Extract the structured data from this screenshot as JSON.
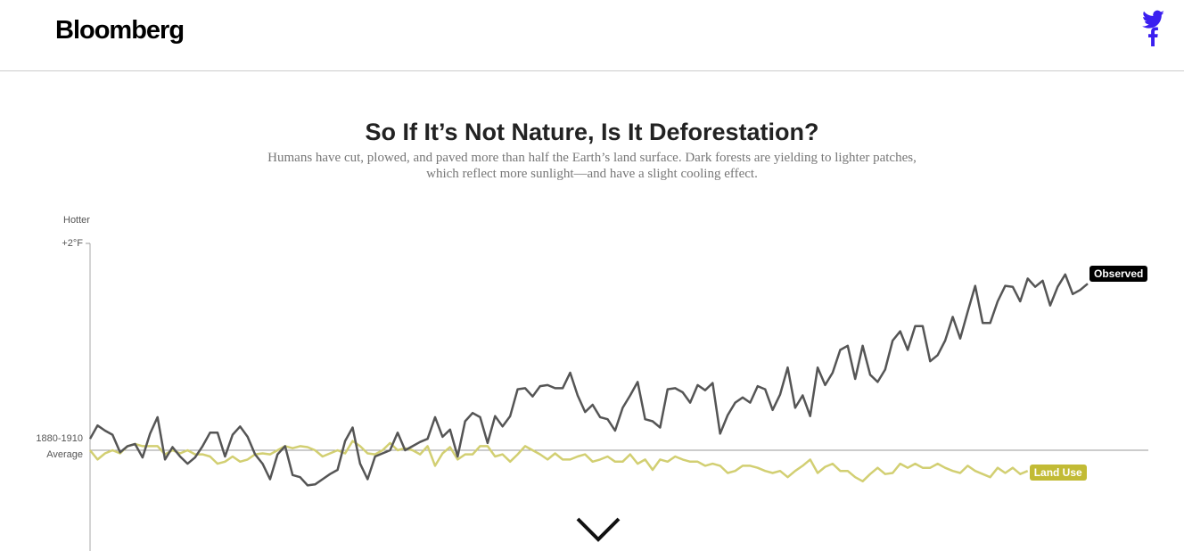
{
  "header": {
    "brand": "Bloomberg"
  },
  "chart_data": {
    "type": "line",
    "title": "So If It’s Not Nature, Is It Deforestation?",
    "subtitle": "Humans have cut, plowed, and paved more than half the Earth’s land surface. Dark forests are yielding to lighter patches, which reflect more sunlight—and have a slight cooling effect.",
    "y_label": "Hotter",
    "ylim": [
      -1,
      2
    ],
    "yticks": [
      {
        "value": 0,
        "label": "1880-1910 Average"
      },
      {
        "value": 2,
        "label": "+2°F"
      }
    ],
    "series": [
      {
        "name": "Observed",
        "color": "#555555",
        "label_color": "#000000",
        "values": [
          0.11,
          0.24,
          0.19,
          0.15,
          -0.02,
          0.04,
          0.06,
          -0.07,
          0.16,
          0.32,
          -0.09,
          0.03,
          -0.06,
          -0.13,
          -0.07,
          0.04,
          0.17,
          0.17,
          -0.06,
          0.15,
          0.23,
          0.13,
          -0.04,
          -0.13,
          -0.28,
          -0.04,
          0.04,
          -0.24,
          -0.26,
          -0.34,
          -0.33,
          -0.28,
          -0.23,
          -0.19,
          0.09,
          0.22,
          -0.13,
          -0.28,
          -0.06,
          -0.03,
          0,
          0.17,
          0,
          0.04,
          0.08,
          0.11,
          0.32,
          0.13,
          0.2,
          -0.06,
          0.28,
          0.36,
          0.32,
          0.07,
          0.33,
          0.23,
          0.33,
          0.59,
          0.6,
          0.52,
          0.62,
          0.63,
          0.6,
          0.6,
          0.75,
          0.53,
          0.37,
          0.44,
          0.32,
          0.3,
          0.19,
          0.41,
          0.53,
          0.66,
          0.3,
          0.28,
          0.22,
          0.59,
          0.6,
          0.56,
          0.46,
          0.63,
          0.58,
          0.65,
          0.16,
          0.34,
          0.46,
          0.51,
          0.46,
          0.62,
          0.59,
          0.39,
          0.54,
          0.8,
          0.41,
          0.53,
          0.33,
          0.8,
          0.63,
          0.75,
          0.97,
          1.01,
          0.69,
          1.01,
          0.73,
          0.66,
          0.78,
          1.06,
          1.15,
          0.97,
          1.2,
          1.2,
          0.86,
          0.92,
          1.06,
          1.29,
          1.08,
          1.34,
          1.59,
          1.23,
          1.23,
          1.44,
          1.59,
          1.58,
          1.44,
          1.66,
          1.58,
          1.64,
          1.4,
          1.58,
          1.7,
          1.51,
          1.55,
          1.61
        ]
      },
      {
        "name": "Land Use",
        "color": "#d2cf72",
        "label_color": "#c2bb35",
        "values": [
          0,
          -0.09,
          -0.03,
          0,
          -0.03,
          0.04,
          0.06,
          0.04,
          0.04,
          0.04,
          -0.04,
          0,
          -0.03,
          0,
          -0.04,
          -0.04,
          -0.06,
          -0.13,
          -0.11,
          -0.06,
          -0.11,
          -0.09,
          -0.04,
          -0.03,
          -0.04,
          0,
          0.04,
          0.02,
          0.04,
          0.03,
          0,
          -0.06,
          -0.03,
          0,
          -0.03,
          0.09,
          0.04,
          -0.03,
          -0.04,
          0,
          0.07,
          0,
          0.02,
          0,
          -0.04,
          0.04,
          -0.15,
          -0.03,
          0.03,
          -0.09,
          -0.04,
          -0.04,
          0.04,
          0.04,
          -0.06,
          -0.04,
          -0.11,
          -0.04,
          0.04,
          0,
          -0.04,
          -0.09,
          -0.03,
          -0.09,
          -0.09,
          -0.06,
          -0.04,
          -0.11,
          -0.09,
          -0.06,
          -0.11,
          -0.11,
          -0.04,
          -0.13,
          -0.09,
          -0.19,
          -0.09,
          -0.11,
          -0.06,
          -0.09,
          -0.11,
          -0.11,
          -0.15,
          -0.13,
          -0.15,
          -0.22,
          -0.2,
          -0.15,
          -0.15,
          -0.17,
          -0.2,
          -0.22,
          -0.2,
          -0.26,
          -0.2,
          -0.15,
          -0.09,
          -0.22,
          -0.16,
          -0.13,
          -0.2,
          -0.2,
          -0.26,
          -0.3,
          -0.23,
          -0.17,
          -0.23,
          -0.22,
          -0.13,
          -0.17,
          -0.13,
          -0.17,
          -0.17,
          -0.13,
          -0.17,
          -0.2,
          -0.22,
          -0.15,
          -0.2,
          -0.23,
          -0.26,
          -0.17,
          -0.22,
          -0.17,
          -0.23,
          -0.2,
          null,
          null,
          null,
          null,
          null,
          null,
          null,
          null
        ]
      }
    ]
  }
}
